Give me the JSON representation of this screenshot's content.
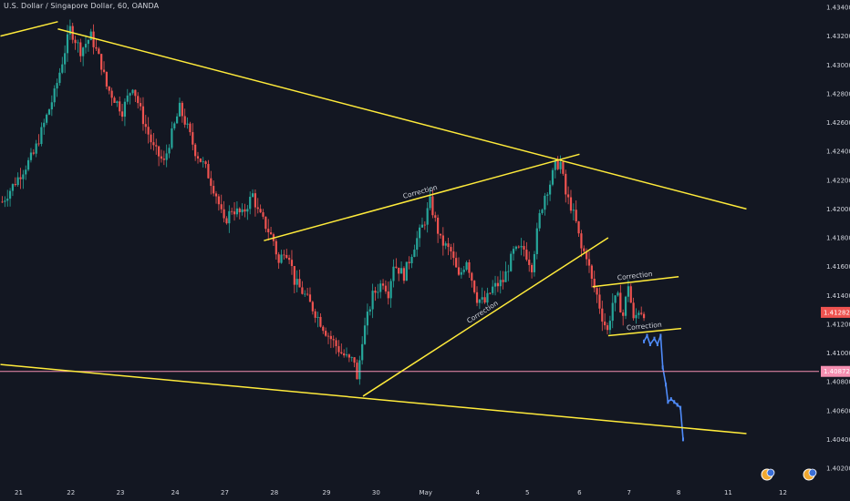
{
  "chart_title": "U.S. Dollar / Singapore Dollar, 60, OANDA",
  "colors": {
    "background": "#131722",
    "up": "#26a69a",
    "down": "#ef5350",
    "trendline": "#ffeb3b",
    "level_line": "#f48fb1",
    "projection": "#4f8bf9",
    "axis_text": "#d1d4dc",
    "current_price_bg": "#ef5350",
    "level_price_bg": "#f48fb1"
  },
  "chart_data": {
    "type": "candlestick",
    "title": "U.S. Dollar / Singapore Dollar, 60, OANDA",
    "x_ticks": [
      "21",
      "22",
      "23",
      "24",
      "27",
      "28",
      "29",
      "30",
      "May",
      "4",
      "5",
      "6",
      "7",
      "8",
      "11",
      "12"
    ],
    "y_ticks": [
      "1.43400",
      "1.43200",
      "1.43000",
      "1.42800",
      "1.42600",
      "1.42400",
      "1.42200",
      "1.42000",
      "1.41800",
      "1.41600",
      "1.41400",
      "1.41200",
      "1.41000",
      "1.40800",
      "1.40600",
      "1.40400",
      "1.40200"
    ],
    "ylim": [
      1.4015,
      1.4345
    ],
    "current_price": "1.41282",
    "level_price": "1.40872",
    "grid": false,
    "price_path": [
      [
        0,
        1.4205
      ],
      [
        6,
        1.4238
      ],
      [
        10,
        1.428
      ],
      [
        13,
        1.4325
      ],
      [
        15,
        1.431
      ],
      [
        17,
        1.432
      ],
      [
        19,
        1.43
      ],
      [
        20,
        1.4285
      ],
      [
        23,
        1.4268
      ],
      [
        25,
        1.4286
      ],
      [
        27,
        1.4262
      ],
      [
        29,
        1.4242
      ],
      [
        31,
        1.4232
      ],
      [
        32,
        1.4246
      ],
      [
        34,
        1.427
      ],
      [
        35.5,
        1.4256
      ],
      [
        37,
        1.424
      ],
      [
        39,
        1.4228
      ],
      [
        41,
        1.421
      ],
      [
        42.5,
        1.419
      ],
      [
        44,
        1.42
      ],
      [
        46,
        1.4196
      ],
      [
        48,
        1.421
      ],
      [
        49,
        1.4198
      ],
      [
        51,
        1.4185
      ],
      [
        52,
        1.4178
      ],
      [
        53,
        1.4162
      ],
      [
        54,
        1.4172
      ],
      [
        55,
        1.4168
      ],
      [
        56,
        1.415
      ],
      [
        58,
        1.414
      ],
      [
        60,
        1.4128
      ],
      [
        62,
        1.4115
      ],
      [
        65,
        1.41
      ],
      [
        66.5,
        1.4095
      ],
      [
        67.5,
        1.4095
      ],
      [
        68,
        1.408
      ],
      [
        69,
        1.411
      ],
      [
        71,
        1.414
      ],
      [
        73,
        1.415
      ],
      [
        74,
        1.4142
      ],
      [
        75,
        1.4162
      ],
      [
        77,
        1.4154
      ],
      [
        79,
        1.4175
      ],
      [
        81,
        1.4192
      ],
      [
        82,
        1.4205
      ],
      [
        84,
        1.4178
      ],
      [
        86,
        1.417
      ],
      [
        87.5,
        1.4152
      ],
      [
        89,
        1.4165
      ],
      [
        91,
        1.4138
      ],
      [
        92.5,
        1.4135
      ],
      [
        94,
        1.4145
      ],
      [
        96,
        1.415
      ],
      [
        98,
        1.417
      ],
      [
        100,
        1.4172
      ],
      [
        101.5,
        1.416
      ],
      [
        103,
        1.4195
      ],
      [
        104,
        1.421
      ],
      [
        105,
        1.4218
      ],
      [
        106,
        1.423
      ],
      [
        107,
        1.4232
      ],
      [
        108,
        1.421
      ],
      [
        109,
        1.4202
      ],
      [
        110,
        1.419
      ],
      [
        111,
        1.4172
      ],
      [
        112,
        1.4168
      ],
      [
        113,
        1.415
      ],
      [
        114,
        1.414
      ],
      [
        115,
        1.4125
      ],
      [
        116,
        1.4115
      ],
      [
        117,
        1.4135
      ],
      [
        118,
        1.4138
      ],
      [
        119,
        1.4126
      ],
      [
        120,
        1.4148
      ],
      [
        121,
        1.4122
      ],
      [
        122,
        1.413
      ],
      [
        123,
        1.4128
      ]
    ],
    "projection_path": [
      [
        123,
        1.4108
      ],
      [
        123.6,
        1.4112
      ],
      [
        124.2,
        1.4106
      ],
      [
        125,
        1.411
      ],
      [
        125.6,
        1.4106
      ],
      [
        126.2,
        1.4112
      ],
      [
        126.6,
        1.409
      ],
      [
        127.2,
        1.4078
      ],
      [
        127.6,
        1.4066
      ],
      [
        128.2,
        1.4068
      ],
      [
        128.8,
        1.4066
      ],
      [
        129.4,
        1.4064
      ],
      [
        130,
        1.4062
      ],
      [
        130.5,
        1.404
      ]
    ],
    "trendlines": [
      {
        "label": "",
        "points": [
          [
            0,
            1.432
          ],
          [
            11,
            1.433
          ]
        ]
      },
      {
        "label": "",
        "points": [
          [
            11,
            1.4325
          ],
          [
            143,
            1.42
          ]
        ]
      },
      {
        "label": "",
        "points": [
          [
            0,
            1.4092
          ],
          [
            143,
            1.4044
          ]
        ]
      },
      {
        "label": "Correction",
        "points": [
          [
            50.5,
            1.4178
          ],
          [
            111,
            1.4238
          ]
        ]
      },
      {
        "label": "Correction",
        "points": [
          [
            69.5,
            1.407
          ],
          [
            116.5,
            1.418
          ]
        ]
      },
      {
        "label": "Correction",
        "points": [
          [
            113.5,
            1.4146
          ],
          [
            130,
            1.4153
          ]
        ]
      },
      {
        "label": "Correction",
        "points": [
          [
            116.5,
            1.4112
          ],
          [
            130.5,
            1.4117
          ]
        ]
      }
    ],
    "level_lines": [
      1.40872
    ]
  }
}
